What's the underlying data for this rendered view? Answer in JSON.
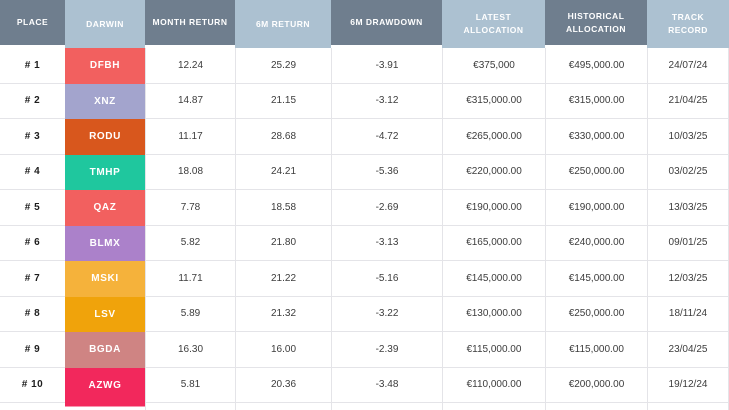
{
  "app": {
    "name": "darwin-allocation-leaderboard"
  },
  "colors": {
    "header_dark": "#6F7E8E",
    "header_light": "#ACC1D1",
    "header_text": "#FFFFFF",
    "body_text": "#3C3C3C",
    "grid_line": "#E4E4E8",
    "background": "#FFFFFF"
  },
  "header": {
    "columns": [
      {
        "key": "place",
        "label": "PLACE",
        "variant": "dark"
      },
      {
        "key": "darwin",
        "label": "DARWIN",
        "variant": "light"
      },
      {
        "key": "month_return",
        "label": "MONTH RETURN",
        "variant": "dark"
      },
      {
        "key": "six_m_return",
        "label": "6M RETURN",
        "variant": "light"
      },
      {
        "key": "six_m_drawdown",
        "label": "6M DRAWDOWN",
        "variant": "dark"
      },
      {
        "key": "latest_allocation",
        "label": "LATEST ALLOCATION",
        "variant": "light"
      },
      {
        "key": "historical_allocation",
        "label": "HISTORICAL ALLOCATION",
        "variant": "dark"
      },
      {
        "key": "track_record",
        "label": "TRACK RECORD",
        "variant": "light"
      }
    ]
  },
  "rows": [
    {
      "place": "# 1",
      "darwin": "DFBH",
      "darwin_color": "#F2605F",
      "month_return": "12.24",
      "six_m_return": "25.29",
      "six_m_drawdown": "-3.91",
      "latest_allocation": "€375,000",
      "historical_allocation": "€495,000.00",
      "track_record": "24/07/24"
    },
    {
      "place": "# 2",
      "darwin": "XNZ",
      "darwin_color": "#A3A4CD",
      "month_return": "14.87",
      "six_m_return": "21.15",
      "six_m_drawdown": "-3.12",
      "latest_allocation": "€315,000.00",
      "historical_allocation": "€315,000.00",
      "track_record": "21/04/25"
    },
    {
      "place": "# 3",
      "darwin": "RODU",
      "darwin_color": "#D8571D",
      "month_return": "11.17",
      "six_m_return": "28.68",
      "six_m_drawdown": "-4.72",
      "latest_allocation": "€265,000.00",
      "historical_allocation": "€330,000.00",
      "track_record": "10/03/25"
    },
    {
      "place": "# 4",
      "darwin": "TMHP",
      "darwin_color": "#1FC79E",
      "month_return": "18.08",
      "six_m_return": "24.21",
      "six_m_drawdown": "-5.36",
      "latest_allocation": "€220,000.00",
      "historical_allocation": "€250,000.00",
      "track_record": "03/02/25"
    },
    {
      "place": "# 5",
      "darwin": "QAZ",
      "darwin_color": "#F2605F",
      "month_return": "7.78",
      "six_m_return": "18.58",
      "six_m_drawdown": "-2.69",
      "latest_allocation": "€190,000.00",
      "historical_allocation": "€190,000.00",
      "track_record": "13/03/25"
    },
    {
      "place": "# 6",
      "darwin": "BLMX",
      "darwin_color": "#AB81CA",
      "month_return": "5.82",
      "six_m_return": "21.80",
      "six_m_drawdown": "-3.13",
      "latest_allocation": "€165,000.00",
      "historical_allocation": "€240,000.00",
      "track_record": "09/01/25"
    },
    {
      "place": "# 7",
      "darwin": "MSKI",
      "darwin_color": "#F5B23B",
      "month_return": "11.71",
      "six_m_return": "21.22",
      "six_m_drawdown": "-5.16",
      "latest_allocation": "€145,000.00",
      "historical_allocation": "€145,000.00",
      "track_record": "12/03/25"
    },
    {
      "place": "# 8",
      "darwin": "LSV",
      "darwin_color": "#F0A30B",
      "month_return": "5.89",
      "six_m_return": "21.32",
      "six_m_drawdown": "-3.22",
      "latest_allocation": "€130,000.00",
      "historical_allocation": "€250,000.00",
      "track_record": "18/11/24"
    },
    {
      "place": "# 9",
      "darwin": "BGDA",
      "darwin_color": "#CF8483",
      "month_return": "16.30",
      "six_m_return": "16.00",
      "six_m_drawdown": "-2.39",
      "latest_allocation": "€115,000.00",
      "historical_allocation": "€115,000.00",
      "track_record": "23/04/25"
    },
    {
      "place": "# 10",
      "darwin": "AZWG",
      "darwin_color": "#F2285C",
      "month_return": "5.81",
      "six_m_return": "20.36",
      "six_m_drawdown": "-3.48",
      "latest_allocation": "€110,000.00",
      "historical_allocation": "€200,000.00",
      "track_record": "19/12/24"
    }
  ],
  "partial_row": {
    "darwin_overflow_color": "#F2285C"
  }
}
